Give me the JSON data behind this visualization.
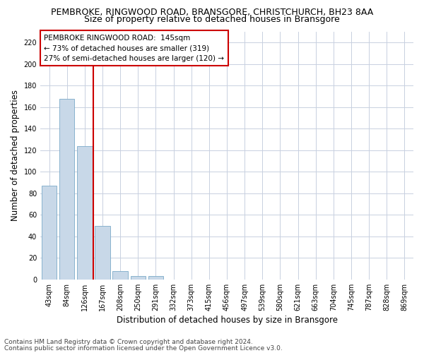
{
  "title": "PEMBROKE, RINGWOOD ROAD, BRANSGORE, CHRISTCHURCH, BH23 8AA",
  "subtitle": "Size of property relative to detached houses in Bransgore",
  "xlabel": "Distribution of detached houses by size in Bransgore",
  "ylabel": "Number of detached properties",
  "categories": [
    "43sqm",
    "84sqm",
    "126sqm",
    "167sqm",
    "208sqm",
    "250sqm",
    "291sqm",
    "332sqm",
    "373sqm",
    "415sqm",
    "456sqm",
    "497sqm",
    "539sqm",
    "580sqm",
    "621sqm",
    "663sqm",
    "704sqm",
    "745sqm",
    "787sqm",
    "828sqm",
    "869sqm"
  ],
  "values": [
    87,
    168,
    124,
    50,
    8,
    3,
    3,
    0,
    0,
    0,
    0,
    0,
    0,
    0,
    0,
    0,
    0,
    0,
    0,
    0,
    0
  ],
  "bar_color": "#c8d8e8",
  "bar_edge_color": "#7aaac8",
  "vline_x": 2.5,
  "vline_color": "#cc0000",
  "annotation_line1": "PEMBROKE RINGWOOD ROAD:  145sqm",
  "annotation_line2": "← 73% of detached houses are smaller (319)",
  "annotation_line3": "27% of semi-detached houses are larger (120) →",
  "annotation_box_color": "#ffffff",
  "annotation_box_edge": "#cc0000",
  "ylim": [
    0,
    230
  ],
  "yticks": [
    0,
    20,
    40,
    60,
    80,
    100,
    120,
    140,
    160,
    180,
    200,
    220
  ],
  "footnote1": "Contains HM Land Registry data © Crown copyright and database right 2024.",
  "footnote2": "Contains public sector information licensed under the Open Government Licence v3.0.",
  "bg_color": "#ffffff",
  "grid_color": "#c8d0e0",
  "title_fontsize": 9,
  "subtitle_fontsize": 9,
  "axis_label_fontsize": 8.5,
  "tick_fontsize": 7,
  "annotation_fontsize": 7.5,
  "footnote_fontsize": 6.5
}
